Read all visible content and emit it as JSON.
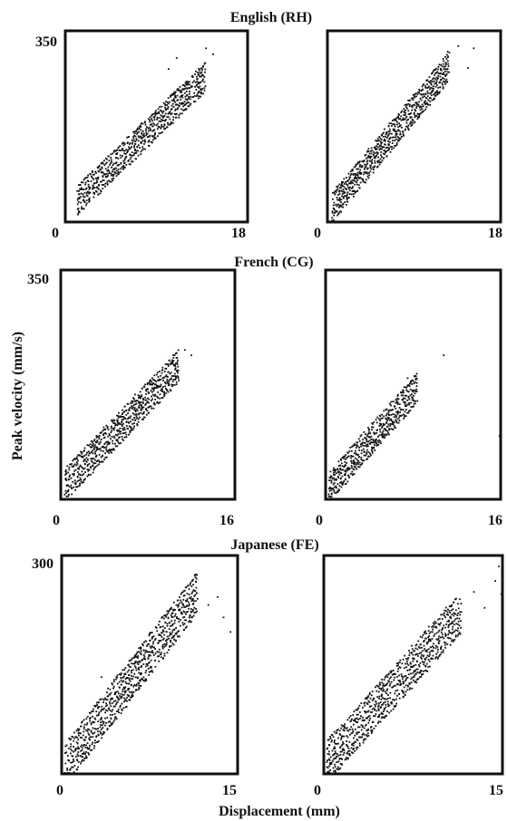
{
  "chart_data": {
    "type": "scatter",
    "xlabel": "Displacement (mm)",
    "ylabel": "Peak velocity (mm/s)",
    "rows": [
      {
        "title": "English (RH)",
        "xlim": [
          0,
          18
        ],
        "ylim": [
          0,
          350
        ],
        "x_tick_labels": [
          "0",
          "18"
        ],
        "y_tick_label": "350",
        "panels": [
          {
            "id": "left",
            "trend": {
              "slope": 17.9,
              "intercept": 18
            },
            "cloud": {
              "x_start": 1.2,
              "x_end": 13.8,
              "spread": 26
            },
            "outliers": [
              [
                14.6,
                307
              ],
              [
                13.9,
                318
              ],
              [
                11.0,
                300
              ],
              [
                10.2,
                280
              ]
            ]
          },
          {
            "id": "right",
            "trend": {
              "slope": 21.2,
              "intercept": 16
            },
            "cloud": {
              "x_start": 0.5,
              "x_end": 12.7,
              "spread": 26
            },
            "outliers": [
              [
                15.2,
                318
              ],
              [
                13.6,
                322
              ],
              [
                14.6,
                282
              ],
              [
                12.5,
                312
              ]
            ]
          }
        ]
      },
      {
        "title": "French (CG)",
        "xlim": [
          0,
          16
        ],
        "ylim": [
          0,
          350
        ],
        "x_tick_labels": [
          "0",
          "16"
        ],
        "y_tick_label": "350",
        "panels": [
          {
            "id": "left",
            "trend": {
              "slope": 17.4,
              "intercept": 15
            },
            "cloud": {
              "x_start": 0.4,
              "x_end": 10.8,
              "spread": 24
            },
            "outliers": [
              [
                12.0,
                220
              ],
              [
                11.4,
                228
              ],
              [
                10.5,
                205
              ],
              [
                10.8,
                185
              ]
            ]
          },
          {
            "id": "right",
            "trend": {
              "slope": 18.9,
              "intercept": 12
            },
            "cloud": {
              "x_start": 0.3,
              "x_end": 8.4,
              "spread": 22
            },
            "outliers": [
              [
                10.8,
                220
              ],
              [
                8.3,
                168
              ],
              [
                7.5,
                185
              ],
              [
                15.9,
                97
              ]
            ]
          }
        ]
      },
      {
        "title": "Japanese (FE)",
        "xlim": [
          0,
          15
        ],
        "ylim": [
          0,
          300
        ],
        "x_tick_labels": [
          "0",
          "15"
        ],
        "y_tick_label": "300",
        "panels": [
          {
            "id": "left",
            "trend": {
              "slope": 21.0,
              "intercept": 6
            },
            "cloud": {
              "x_start": 0.3,
              "x_end": 11.6,
              "spread": 28
            },
            "outliers": [
              [
                14.4,
                195
              ],
              [
                13.8,
                215
              ],
              [
                13.3,
                243
              ],
              [
                12.5,
                232
              ],
              [
                11.5,
                268
              ],
              [
                3.4,
                133
              ]
            ]
          },
          {
            "id": "right",
            "trend": {
              "slope": 18.2,
              "intercept": 12
            },
            "cloud": {
              "x_start": 0.3,
              "x_end": 11.6,
              "spread": 28
            },
            "outliers": [
              [
                14.7,
                285
              ],
              [
                14.4,
                265
              ],
              [
                12.6,
                250
              ],
              [
                13.5,
                228
              ],
              [
                10.6,
                215
              ],
              [
                14.9,
                247
              ]
            ]
          }
        ]
      }
    ]
  }
}
